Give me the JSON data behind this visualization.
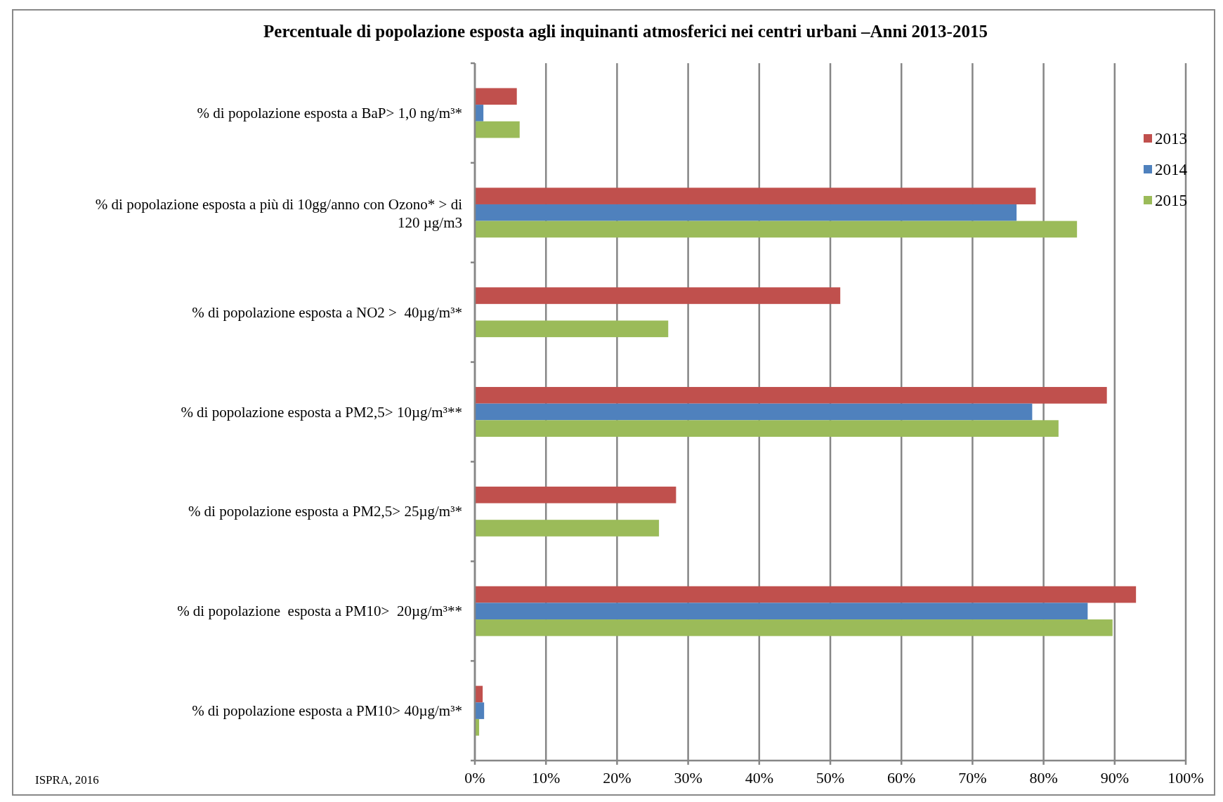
{
  "chart_data": {
    "type": "bar",
    "orientation": "horizontal",
    "title": "Percentuale di popolazione esposta agli inquinanti atmosferici nei centri urbani –Anni 2013-2015",
    "categories": [
      "% di popolazione esposta a BaP> 1,0 ng/m³*",
      "% di popolazione esposta a più di 10gg/anno con Ozono* > di 120 µg/m3",
      "% di popolazione esposta a NO2 >  40µg/m³*",
      "% di popolazione esposta a PM2,5> 10µg/m³**",
      "% di popolazione esposta a PM2,5> 25µg/m³*",
      "% di popolazione  esposta a PM10>  20µg/m³**",
      "% di popolazione esposta a PM10> 40µg/m³*"
    ],
    "series": [
      {
        "name": "2013",
        "color": "#c0504d",
        "values": [
          5.9,
          78.9,
          51.4,
          88.9,
          28.3,
          93.0,
          1.1
        ]
      },
      {
        "name": "2014",
        "color": "#4f81bd",
        "values": [
          1.2,
          76.2,
          null,
          78.4,
          null,
          86.2,
          1.3
        ]
      },
      {
        "name": "2015",
        "color": "#9bbb59",
        "values": [
          6.3,
          84.7,
          27.2,
          82.1,
          25.9,
          89.7,
          0.6
        ]
      }
    ],
    "xlim": [
      0,
      100
    ],
    "xticks": [
      {
        "value": 0,
        "label": "0%"
      },
      {
        "value": 10,
        "label": "10%"
      },
      {
        "value": 20,
        "label": "20%"
      },
      {
        "value": 30,
        "label": "30%"
      },
      {
        "value": 40,
        "label": "40%"
      },
      {
        "value": 50,
        "label": "50%"
      },
      {
        "value": 60,
        "label": "60%"
      },
      {
        "value": 70,
        "label": "70%"
      },
      {
        "value": 80,
        "label": "80%"
      },
      {
        "value": 90,
        "label": "90%"
      },
      {
        "value": 100,
        "label": "100%"
      }
    ],
    "grid": "x",
    "legend": "right",
    "annotations": [
      "ISPRA, 2016"
    ]
  }
}
